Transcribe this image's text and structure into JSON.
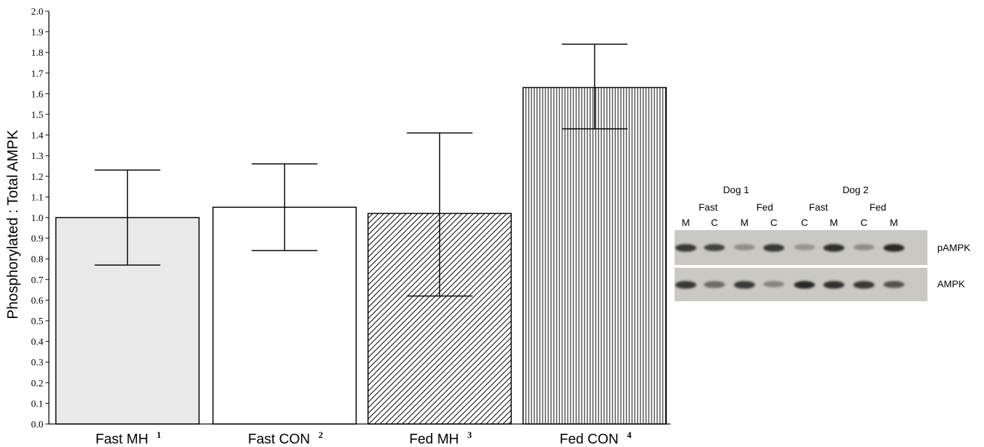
{
  "chart_data": {
    "type": "bar",
    "categories": [
      "Fast MH",
      "Fast CON",
      "Fed MH",
      "Fed CON"
    ],
    "category_superscripts": [
      "1",
      "2",
      "3",
      "4"
    ],
    "values": [
      1.0,
      1.05,
      1.02,
      1.63
    ],
    "error_low": [
      0.77,
      0.84,
      0.62,
      1.43
    ],
    "error_high": [
      1.23,
      1.26,
      1.41,
      1.84
    ],
    "bar_styles": [
      "light-gray-fill",
      "white-fill",
      "diagonal-hatch",
      "vertical-hatch"
    ],
    "ylabel": "Phosphorylated : Total AMPK",
    "xlabel": "",
    "ylim": [
      0,
      2.0
    ],
    "yticks": [
      "0.0",
      "0.1",
      "0.2",
      "0.3",
      "0.4",
      "0.5",
      "0.6",
      "0.7",
      "0.8",
      "0.9",
      "1.0",
      "1.1",
      "1.2",
      "1.3",
      "1.4",
      "1.5",
      "1.6",
      "1.7",
      "1.8",
      "1.9",
      "2.0"
    ],
    "grid": false
  },
  "blot": {
    "group_labels": [
      "Dog 1",
      "Dog 2"
    ],
    "state_labels": [
      "Fast",
      "Fed",
      "Fast",
      "Fed"
    ],
    "lane_labels": [
      "M",
      "C",
      "M",
      "C",
      "C",
      "M",
      "C",
      "M"
    ],
    "row_labels": [
      "pAMPK",
      "AMPK"
    ],
    "band_intensity": {
      "pAMPK": [
        0.85,
        0.8,
        0.35,
        0.85,
        0.3,
        0.9,
        0.35,
        0.95
      ],
      "AMPK": [
        0.85,
        0.55,
        0.85,
        0.4,
        0.95,
        0.9,
        0.85,
        0.7
      ]
    }
  },
  "colors": {
    "bar_light_fill": "#e9e9e9",
    "bar_outline": "#000000",
    "blot_background": "#c9c8c3",
    "band": "#1f1f1f"
  }
}
